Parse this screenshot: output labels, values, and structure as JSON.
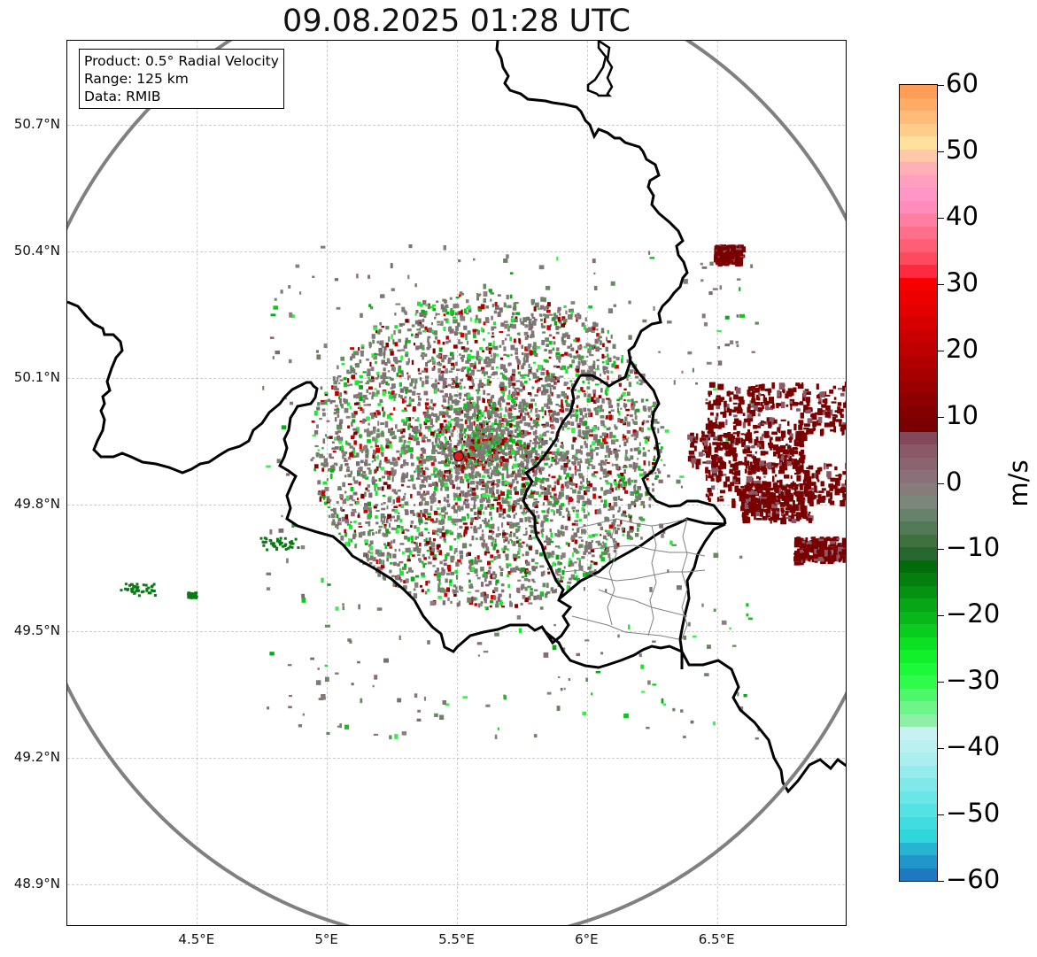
{
  "title": "09.08.2025 01:28 UTC",
  "info_box": {
    "product": "Product: 0.5° Radial Velocity",
    "range": "Range: 125 km",
    "source": "Data: RMIB"
  },
  "map": {
    "extent": {
      "lon_min": 4.0,
      "lon_max": 7.0,
      "lat_min": 48.8,
      "lat_max": 50.9
    },
    "lat_ticks": [
      {
        "value": 50.7,
        "label": "50.7°N"
      },
      {
        "value": 50.4,
        "label": "50.4°N"
      },
      {
        "value": 50.1,
        "label": "50.1°N"
      },
      {
        "value": 49.8,
        "label": "49.8°N"
      },
      {
        "value": 49.5,
        "label": "49.5°N"
      },
      {
        "value": 49.2,
        "label": "49.2°N"
      },
      {
        "value": 48.9,
        "label": "48.9°N"
      }
    ],
    "lon_ticks": [
      {
        "value": 4.5,
        "label": "4.5°E"
      },
      {
        "value": 5.0,
        "label": "5°E"
      },
      {
        "value": 5.5,
        "label": "5.5°E"
      },
      {
        "value": 6.0,
        "label": "6°E"
      },
      {
        "value": 6.5,
        "label": "6.5°E"
      }
    ],
    "radar_site": {
      "lon": 5.505,
      "lat": 49.915,
      "color": "#e31a1c"
    },
    "range_ring_color": "#808080",
    "grid_color": "#b0b0b0",
    "border_color": "#000000",
    "admin_border_color": "#808080"
  },
  "colorbar": {
    "unit": "m/s",
    "vmin": -60,
    "vmax": 60,
    "tick_labels": [
      "60",
      "50",
      "40",
      "30",
      "20",
      "10",
      "0",
      "−10",
      "−20",
      "−30",
      "−40",
      "−50",
      "−60"
    ],
    "colors_bottom_to_top": [
      "#1f78c0",
      "#2196c8",
      "#26b5d0",
      "#2fd6da",
      "#3fdde0",
      "#55e2e2",
      "#6ae6e6",
      "#80e8e8",
      "#96ecec",
      "#aaeeee",
      "#bbf0f0",
      "#c8f2f2",
      "#8ef0a8",
      "#6ef58a",
      "#4cf86a",
      "#2efb4a",
      "#1df93a",
      "#12f02a",
      "#0ce022",
      "#0acc1e",
      "#08b81a",
      "#06a616",
      "#059212",
      "#047e0e",
      "#036c0a",
      "#266830",
      "#3e7040",
      "#527a56",
      "#66826a",
      "#7a877a",
      "#867c7c",
      "#8a7078",
      "#8a6470",
      "#8a5866",
      "#84485c",
      "#7a0000",
      "#820000",
      "#8e0000",
      "#9a0000",
      "#a60000",
      "#b20000",
      "#be0000",
      "#ca0000",
      "#d60000",
      "#e20000",
      "#ee0000",
      "#f80000",
      "#ff2a40",
      "#ff4a5e",
      "#ff5e74",
      "#ff6e8a",
      "#ff7ea2",
      "#ff8cba",
      "#ff96c6",
      "#ffa0c0",
      "#ffb0b4",
      "#ffc8a8",
      "#ffe09c",
      "#ffcc8a",
      "#ffbc78",
      "#ffac66",
      "#ff9c56"
    ]
  }
}
